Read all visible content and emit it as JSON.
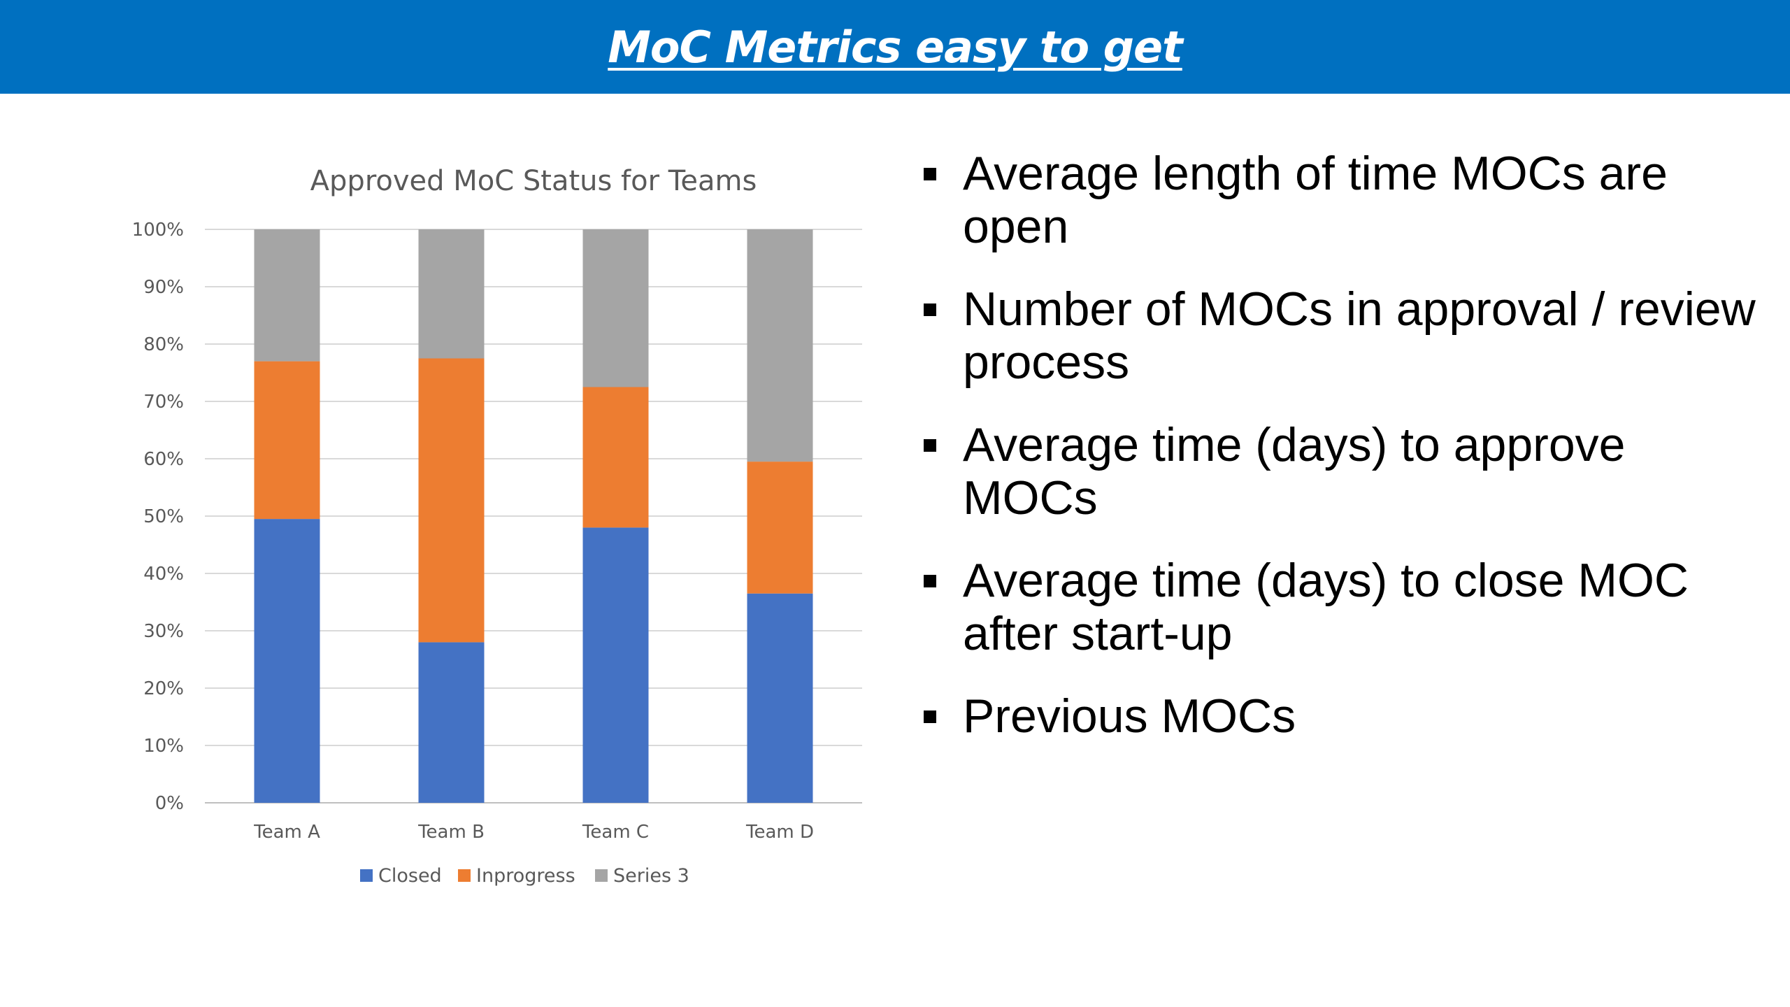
{
  "header": {
    "title": "MoC Metrics easy to get"
  },
  "bullets": [
    "Average length of time MOCs are open",
    "Number of MOCs in approval / review process",
    "Average time (days) to approve MOCs",
    "Average time (days) to close MOC after start-up",
    "Previous MOCs"
  ],
  "chart_data": {
    "type": "bar",
    "stacked": true,
    "title": "Approved MoC Status for Teams",
    "categories": [
      "Team A",
      "Team B",
      "Team C",
      "Team D"
    ],
    "series": [
      {
        "name": "Closed",
        "color": "#4472c4",
        "values": [
          49.5,
          28,
          48,
          36.5
        ]
      },
      {
        "name": "Inprogress",
        "color": "#ed7d31",
        "values": [
          27.5,
          49.5,
          24.5,
          23
        ]
      },
      {
        "name": "Series 3",
        "color": "#a5a5a5",
        "values": [
          23,
          22.5,
          27.5,
          40.5
        ]
      }
    ],
    "y_ticks": [
      "0%",
      "10%",
      "20%",
      "30%",
      "40%",
      "50%",
      "60%",
      "70%",
      "80%",
      "90%",
      "100%"
    ],
    "ylim": [
      0,
      100
    ],
    "grid": true,
    "legend_position": "bottom"
  }
}
